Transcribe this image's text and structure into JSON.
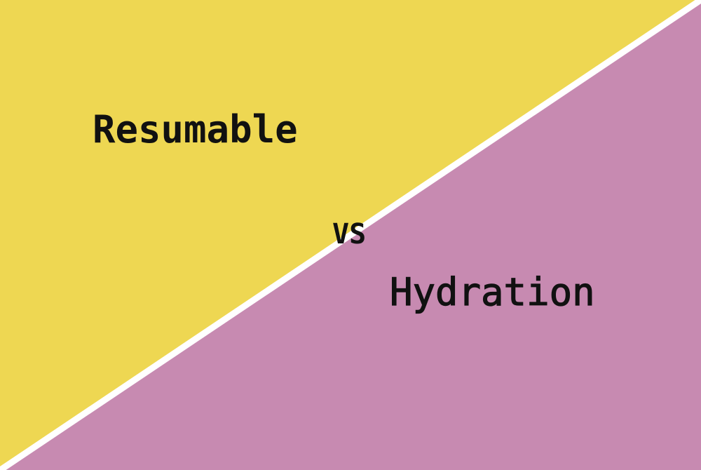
{
  "banner": {
    "left_term": "Resumable",
    "connector": "VS",
    "right_term": "Hydration"
  },
  "colors": {
    "left_panel": "#eed752",
    "right_panel": "#c78ab1",
    "divider": "#ffffff",
    "text": "#111111"
  }
}
